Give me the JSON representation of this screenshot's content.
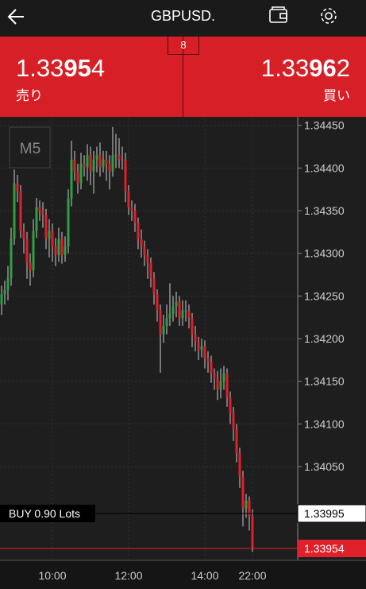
{
  "header": {
    "title": "GBPUSD."
  },
  "quote": {
    "spread": "8",
    "bid": {
      "price_parts": [
        "1.33",
        "95",
        "4"
      ],
      "label": "売り"
    },
    "ask": {
      "price_parts": [
        "1.33",
        "96",
        "2"
      ],
      "label": "買い"
    }
  },
  "chart_data": {
    "type": "candlestick",
    "timeframe": "M5",
    "categories": [
      null,
      null,
      null,
      null,
      null,
      null,
      null,
      null,
      null,
      null,
      null,
      null,
      null,
      null,
      null,
      null,
      "10:00",
      null,
      null,
      null,
      null,
      null,
      null,
      null,
      null,
      null,
      null,
      null,
      null,
      null,
      null,
      null,
      null,
      null,
      null,
      null,
      null,
      null,
      null,
      null,
      "12:00",
      null,
      null,
      null,
      null,
      null,
      null,
      null,
      null,
      null,
      null,
      null,
      null,
      null,
      null,
      null,
      null,
      null,
      null,
      null,
      null,
      null,
      null,
      null,
      "14:00",
      null,
      null,
      null,
      null,
      null,
      null,
      null,
      null,
      null,
      null,
      null,
      null,
      null,
      null,
      "22:00"
    ],
    "open": [
      1.3424,
      1.34252,
      1.34257,
      1.34271,
      1.34317,
      1.34382,
      1.34373,
      1.34326,
      1.34317,
      1.34289,
      1.3428,
      1.34326,
      1.34354,
      1.3435,
      1.34345,
      1.34317,
      1.34326,
      1.34308,
      1.34298,
      1.34317,
      1.34298,
      1.34308,
      1.34364,
      1.3441,
      1.34396,
      1.34382,
      1.34405,
      1.34401,
      1.34415,
      1.34396,
      1.3441,
      1.34415,
      1.34401,
      1.3441,
      1.34405,
      1.34396,
      1.34415,
      1.34415,
      1.3441,
      1.3441,
      1.34373,
      1.34354,
      1.3435,
      1.34336,
      1.34317,
      1.34308,
      1.34298,
      1.34289,
      1.34271,
      1.34252,
      1.34233,
      1.34205,
      1.34215,
      1.34224,
      1.34229,
      1.34238,
      1.34243,
      1.34224,
      1.34233,
      1.34233,
      1.34224,
      1.34205,
      1.34196,
      1.34187,
      1.34191,
      1.34177,
      1.34173,
      1.34159,
      1.34154,
      1.3414,
      1.3415,
      1.34159,
      1.34131,
      1.34112,
      1.34094,
      1.34066,
      1.34038,
      1.34001,
      1.3401,
      1.33992
    ],
    "high": [
      1.34262,
      1.34268,
      1.34285,
      1.3433,
      1.34398,
      1.34392,
      1.3438,
      1.34335,
      1.34325,
      1.343,
      1.3434,
      1.34365,
      1.34362,
      1.3436,
      1.34352,
      1.3434,
      1.34335,
      1.34318,
      1.3433,
      1.34325,
      1.3432,
      1.34375,
      1.34432,
      1.3442,
      1.34405,
      1.34418,
      1.34415,
      1.34428,
      1.34425,
      1.3442,
      1.34425,
      1.3443,
      1.3442,
      1.3442,
      1.34415,
      1.34448,
      1.3444,
      1.34435,
      1.34425,
      1.34418,
      1.3438,
      1.34362,
      1.34358,
      1.34342,
      1.34328,
      1.34315,
      1.34305,
      1.34295,
      1.34278,
      1.34258,
      1.3424,
      1.34228,
      1.3424,
      1.34265,
      1.3425,
      1.34255,
      1.3425,
      1.34245,
      1.34245,
      1.3424,
      1.3423,
      1.34215,
      1.34202,
      1.342,
      1.34198,
      1.34185,
      1.3418,
      1.34165,
      1.34162,
      1.34165,
      1.34168,
      1.34165,
      1.34138,
      1.3412,
      1.341,
      1.34072,
      1.34045,
      1.34018,
      1.34015,
      1.34
    ],
    "low": [
      1.34228,
      1.3424,
      1.34245,
      1.34262,
      1.3431,
      1.3436,
      1.34318,
      1.343,
      1.3427,
      1.34262,
      1.34272,
      1.34318,
      1.34338,
      1.3433,
      1.34305,
      1.34295,
      1.3429,
      1.34285,
      1.3429,
      1.34288,
      1.3429,
      1.343,
      1.34355,
      1.34385,
      1.3437,
      1.34375,
      1.3439,
      1.34385,
      1.3438,
      1.3437,
      1.34395,
      1.3439,
      1.34395,
      1.34385,
      1.34375,
      1.3439,
      1.344,
      1.344,
      1.34398,
      1.3436,
      1.34345,
      1.34338,
      1.34325,
      1.34305,
      1.34295,
      1.34285,
      1.3427,
      1.3426,
      1.3424,
      1.3422,
      1.3416,
      1.34195,
      1.34205,
      1.34215,
      1.3422,
      1.34225,
      1.34215,
      1.34215,
      1.3422,
      1.34212,
      1.3419,
      1.34185,
      1.34175,
      1.34178,
      1.34165,
      1.3416,
      1.34148,
      1.3414,
      1.34128,
      1.3413,
      1.3414,
      1.3412,
      1.341,
      1.3408,
      1.34055,
      1.34025,
      1.3398,
      1.3399,
      1.33975,
      1.3395
    ],
    "close": [
      1.34252,
      1.34257,
      1.34271,
      1.34317,
      1.34382,
      1.34373,
      1.34326,
      1.34317,
      1.34289,
      1.3428,
      1.34326,
      1.34354,
      1.3435,
      1.34345,
      1.34317,
      1.34326,
      1.34308,
      1.34298,
      1.34317,
      1.34298,
      1.34308,
      1.34364,
      1.3441,
      1.34396,
      1.34382,
      1.34405,
      1.34401,
      1.34415,
      1.34396,
      1.3441,
      1.34415,
      1.34401,
      1.3441,
      1.34405,
      1.34396,
      1.34415,
      1.34415,
      1.3441,
      1.3441,
      1.34373,
      1.34354,
      1.3435,
      1.34336,
      1.34317,
      1.34308,
      1.34298,
      1.34289,
      1.34271,
      1.34252,
      1.34233,
      1.34205,
      1.34215,
      1.34224,
      1.34229,
      1.34238,
      1.34243,
      1.34224,
      1.34233,
      1.34233,
      1.34224,
      1.34205,
      1.34196,
      1.34187,
      1.34191,
      1.34177,
      1.34173,
      1.34159,
      1.34154,
      1.3414,
      1.3415,
      1.34159,
      1.34131,
      1.34112,
      1.34094,
      1.34066,
      1.34038,
      1.34001,
      1.3401,
      1.33992,
      1.33954
    ],
    "up_color": "#2ea043",
    "down_color": "#e0202a",
    "ylim": [
      1.3394,
      1.3446
    ],
    "yticks": [
      {
        "value": 1.3445,
        "label": "1.34450"
      },
      {
        "value": 1.344,
        "label": "1.34400"
      },
      {
        "value": 1.3435,
        "label": "1.34350"
      },
      {
        "value": 1.343,
        "label": "1.34300"
      },
      {
        "value": 1.3425,
        "label": "1.34250"
      },
      {
        "value": 1.342,
        "label": "1.34200"
      },
      {
        "value": 1.3415,
        "label": "1.34150"
      },
      {
        "value": 1.341,
        "label": "1.34100"
      },
      {
        "value": 1.3405,
        "label": "1.34050"
      }
    ],
    "grid": true,
    "order_line": {
      "label": "BUY 0.90 Lots",
      "price": {
        "value": 1.33995,
        "label": "1.33995"
      }
    },
    "current_price": {
      "value": 1.33954,
      "label": "1.33954"
    }
  }
}
